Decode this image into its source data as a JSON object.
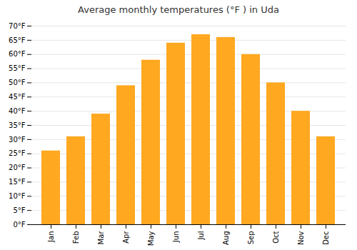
{
  "chart_data": {
    "type": "bar",
    "title": "Average monthly temperatures (°F ) in Uda",
    "categories": [
      "Jan",
      "Feb",
      "Mar",
      "Apr",
      "May",
      "Jun",
      "Jul",
      "Aug",
      "Sep",
      "Oct",
      "Nov",
      "Dec"
    ],
    "values": [
      26,
      31,
      39,
      49,
      58,
      64,
      67,
      66,
      60,
      50,
      40,
      31
    ],
    "color": "#FFA820",
    "ylim": [
      0,
      70
    ],
    "yticks": [
      {
        "value": 0,
        "label": "0°F"
      },
      {
        "value": 5,
        "label": "5°F"
      },
      {
        "value": 10,
        "label": "10°F"
      },
      {
        "value": 15,
        "label": "15°F"
      },
      {
        "value": 20,
        "label": "20°F"
      },
      {
        "value": 25,
        "label": "25°F"
      },
      {
        "value": 30,
        "label": "30°F"
      },
      {
        "value": 35,
        "label": "35°F"
      },
      {
        "value": 40,
        "label": "40°F"
      },
      {
        "value": 45,
        "label": "45°F"
      },
      {
        "value": 50,
        "label": "50°F"
      },
      {
        "value": 55,
        "label": "55°F"
      },
      {
        "value": 60,
        "label": "60°F"
      },
      {
        "value": 65,
        "label": "65°F"
      },
      {
        "value": 70,
        "label": "70°F"
      }
    ],
    "grid": true
  }
}
